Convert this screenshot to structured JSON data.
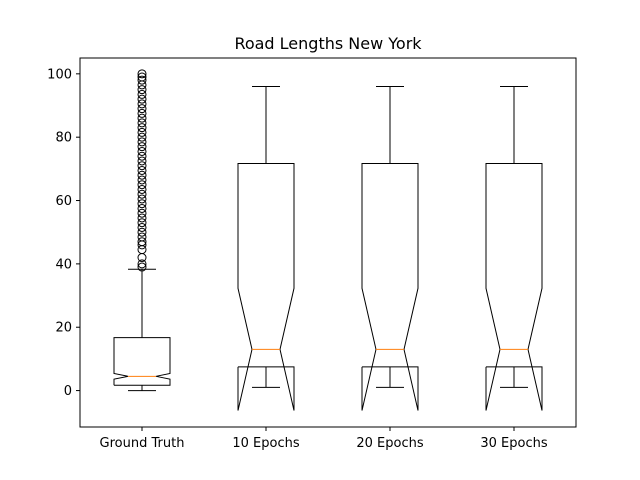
{
  "chart_data": {
    "type": "boxplot",
    "title": "Road Lengths New York",
    "xlabel": "",
    "ylabel": "",
    "ylim": [
      -11.5,
      105
    ],
    "yticks": [
      0,
      20,
      40,
      60,
      80,
      100
    ],
    "notched": true,
    "grid": false,
    "colors": {
      "box": "#000000",
      "median": "#ff7f0e",
      "background": "#ffffff"
    },
    "series": [
      {
        "label": "Ground Truth",
        "whisker_low": 0,
        "q1": 1.7,
        "median": 4.5,
        "q3": 16.7,
        "whisker_high": 38.3,
        "notch_low": 3.6,
        "notch_high": 5.4,
        "fliers": [
          39,
          40,
          42,
          44.5,
          46,
          47,
          48.5,
          50,
          51.5,
          53,
          54.5,
          56,
          57.5,
          59,
          60.5,
          62,
          63.5,
          65,
          66.5,
          68,
          69.5,
          71,
          72.5,
          74,
          75.5,
          77,
          78.5,
          80,
          81.5,
          83,
          84.5,
          86,
          87.5,
          89,
          90.5,
          92,
          93.5,
          95,
          96.5,
          98,
          99,
          100
        ]
      },
      {
        "label": "10 Epochs",
        "whisker_low": 1,
        "q1": 7.5,
        "median": 13,
        "q3": 71.7,
        "whisker_high": 96,
        "notch_low": -6.3,
        "notch_high": 32.3,
        "fliers": []
      },
      {
        "label": "20 Epochs",
        "whisker_low": 1,
        "q1": 7.5,
        "median": 13,
        "q3": 71.7,
        "whisker_high": 96,
        "notch_low": -6.3,
        "notch_high": 32.3,
        "fliers": []
      },
      {
        "label": "30 Epochs",
        "whisker_low": 1,
        "q1": 7.5,
        "median": 13,
        "q3": 71.7,
        "whisker_high": 96,
        "notch_low": -6.3,
        "notch_high": 32.3,
        "fliers": []
      }
    ]
  }
}
